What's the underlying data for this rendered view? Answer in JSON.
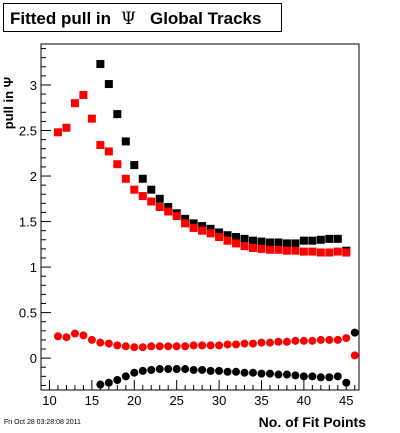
{
  "chart_data": {
    "type": "scatter",
    "title_parts": [
      "Fitted pull in",
      "Ψ",
      "Global Tracks"
    ],
    "xlabel": "No. of Fit Points",
    "ylabel": "pull in Ψ",
    "xlim": [
      9,
      46.5
    ],
    "ylim": [
      -0.35,
      3.45
    ],
    "x_ticks": [
      10,
      15,
      20,
      25,
      30,
      35,
      40,
      45
    ],
    "y_ticks": [
      0,
      0.5,
      1,
      1.5,
      2,
      2.5,
      3
    ],
    "y_tick_labels": [
      "0",
      "0.5",
      "1",
      "1.5",
      "2",
      "2.5",
      "3"
    ],
    "grid": false,
    "series": [
      {
        "marker": "square",
        "color": "#000000",
        "x": [
          16,
          17,
          18,
          19,
          20,
          21,
          22,
          23,
          24,
          25,
          26,
          27,
          28,
          29,
          30,
          31,
          32,
          33,
          34,
          35,
          36,
          37,
          38,
          39,
          40,
          41,
          42,
          43,
          44,
          45
        ],
        "y": [
          3.23,
          3.01,
          2.68,
          2.38,
          2.12,
          1.97,
          1.85,
          1.75,
          1.66,
          1.59,
          1.53,
          1.48,
          1.45,
          1.42,
          1.38,
          1.35,
          1.33,
          1.31,
          1.29,
          1.28,
          1.27,
          1.27,
          1.26,
          1.26,
          1.29,
          1.29,
          1.3,
          1.31,
          1.31,
          1.18
        ]
      },
      {
        "marker": "square",
        "color": "#ff0000",
        "x": [
          11,
          12,
          13,
          14,
          15,
          16,
          17,
          18,
          19,
          20,
          21,
          22,
          23,
          24,
          25,
          26,
          27,
          28,
          29,
          30,
          31,
          32,
          33,
          34,
          35,
          36,
          37,
          38,
          39,
          40,
          41,
          42,
          43,
          44,
          45
        ],
        "y": [
          2.48,
          2.53,
          2.8,
          2.89,
          2.63,
          2.34,
          2.27,
          2.13,
          1.97,
          1.85,
          1.78,
          1.72,
          1.66,
          1.61,
          1.56,
          1.48,
          1.43,
          1.4,
          1.37,
          1.33,
          1.29,
          1.26,
          1.23,
          1.21,
          1.2,
          1.19,
          1.19,
          1.18,
          1.18,
          1.17,
          1.17,
          1.16,
          1.16,
          1.17,
          1.16
        ]
      },
      {
        "marker": "circle",
        "color": "#ff0000",
        "x": [
          11,
          12,
          13,
          14,
          15,
          16,
          17,
          18,
          19,
          20,
          21,
          22,
          23,
          24,
          25,
          26,
          27,
          28,
          29,
          30,
          31,
          32,
          33,
          34,
          35,
          36,
          37,
          38,
          39,
          40,
          41,
          42,
          43,
          44,
          45,
          46
        ],
        "y": [
          0.24,
          0.23,
          0.27,
          0.25,
          0.2,
          0.17,
          0.16,
          0.14,
          0.13,
          0.12,
          0.12,
          0.13,
          0.13,
          0.13,
          0.13,
          0.13,
          0.14,
          0.14,
          0.14,
          0.14,
          0.15,
          0.15,
          0.16,
          0.16,
          0.17,
          0.17,
          0.18,
          0.18,
          0.19,
          0.19,
          0.19,
          0.2,
          0.2,
          0.2,
          0.22,
          0.03
        ]
      },
      {
        "marker": "circle",
        "color": "#000000",
        "x": [
          16,
          17,
          18,
          19,
          20,
          21,
          22,
          23,
          24,
          25,
          26,
          27,
          28,
          29,
          30,
          31,
          32,
          33,
          34,
          35,
          36,
          37,
          38,
          39,
          40,
          41,
          42,
          43,
          44,
          45,
          46
        ],
        "y": [
          -0.29,
          -0.27,
          -0.24,
          -0.2,
          -0.16,
          -0.14,
          -0.13,
          -0.12,
          -0.12,
          -0.12,
          -0.12,
          -0.13,
          -0.13,
          -0.14,
          -0.14,
          -0.15,
          -0.15,
          -0.16,
          -0.16,
          -0.17,
          -0.17,
          -0.18,
          -0.18,
          -0.19,
          -0.2,
          -0.2,
          -0.21,
          -0.21,
          -0.2,
          -0.27,
          0.28
        ]
      }
    ]
  },
  "footer_timestamp": "Fri Oct 28 03:28:08 2011"
}
